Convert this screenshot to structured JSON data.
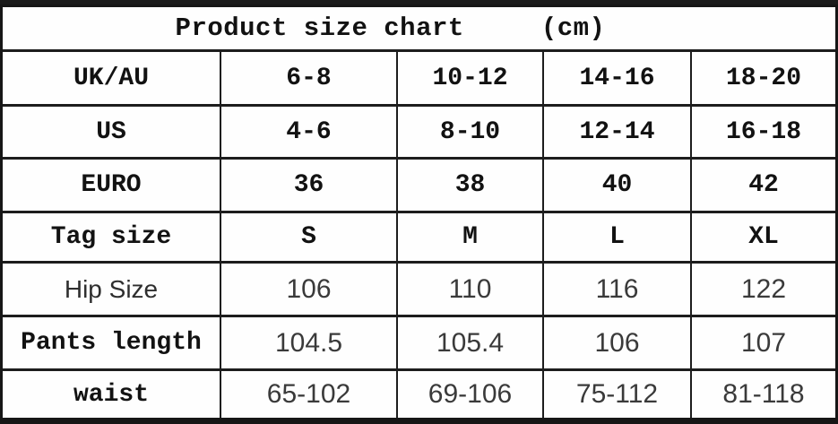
{
  "table": {
    "title": {
      "main": "Product size chart",
      "unit": "(cm)"
    },
    "rows": [
      {
        "label": "UK/AU",
        "values": [
          "6-8",
          "10-12",
          "14-16",
          "18-20"
        ]
      },
      {
        "label": "US",
        "values": [
          "4-6",
          "8-10",
          "12-14",
          "16-18"
        ]
      },
      {
        "label": "EURO",
        "values": [
          "36",
          "38",
          "40",
          "42"
        ]
      },
      {
        "label": "Tag size",
        "values": [
          "S",
          "M",
          "L",
          "XL"
        ]
      },
      {
        "label": "Hip Size",
        "values": [
          "106",
          "110",
          "116",
          "122"
        ]
      },
      {
        "label": "Pants length",
        "values": [
          "104.5",
          "105.4",
          "106",
          "107"
        ]
      },
      {
        "label": "waist",
        "values": [
          "65-102",
          "69-106",
          "75-112",
          "81-118"
        ]
      }
    ]
  },
  "colors": {
    "border": "#1d1d1d",
    "mono_text": "#121212",
    "sans_text": "#3a3a3a",
    "background": "#fefefe"
  }
}
